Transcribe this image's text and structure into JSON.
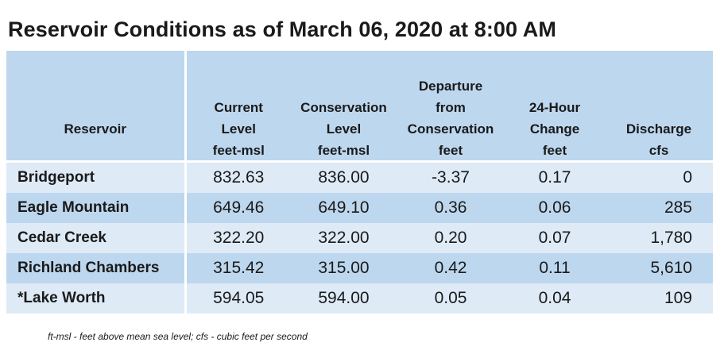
{
  "title": "Reservoir Conditions as of March 06, 2020 at 8:00 AM",
  "columns": [
    {
      "label_lines": [
        "Reservoir"
      ],
      "unit": ""
    },
    {
      "label_lines": [
        "Current",
        "Level"
      ],
      "unit": "feet-msl"
    },
    {
      "label_lines": [
        "Conservation",
        "Level"
      ],
      "unit": "feet-msl"
    },
    {
      "label_lines": [
        "Departure",
        "from",
        "Conservation"
      ],
      "unit": "feet"
    },
    {
      "label_lines": [
        "24-Hour",
        "Change"
      ],
      "unit": "feet"
    },
    {
      "label_lines": [
        "Discharge"
      ],
      "unit": "cfs"
    }
  ],
  "rows": [
    {
      "name": "Bridgeport",
      "current": "832.63",
      "conservation": "836.00",
      "departure": "-3.37",
      "change": "0.17",
      "discharge": "0"
    },
    {
      "name": "Eagle Mountain",
      "current": "649.46",
      "conservation": "649.10",
      "departure": "0.36",
      "change": "0.06",
      "discharge": "285"
    },
    {
      "name": "Cedar Creek",
      "current": "322.20",
      "conservation": "322.00",
      "departure": "0.20",
      "change": "0.07",
      "discharge": "1,780"
    },
    {
      "name": "Richland Chambers",
      "current": "315.42",
      "conservation": "315.00",
      "departure": "0.42",
      "change": "0.11",
      "discharge": "5,610"
    },
    {
      "name": "*Lake Worth",
      "current": "594.05",
      "conservation": "594.00",
      "departure": "0.05",
      "change": "0.04",
      "discharge": "109"
    }
  ],
  "footnote": "ft-msl - feet above mean sea level; cfs - cubic feet per second",
  "colors": {
    "header_bg": "#bdd7ee",
    "row_light": "#deeaf6",
    "row_dark": "#bdd7ee",
    "divider": "#ffffff"
  }
}
